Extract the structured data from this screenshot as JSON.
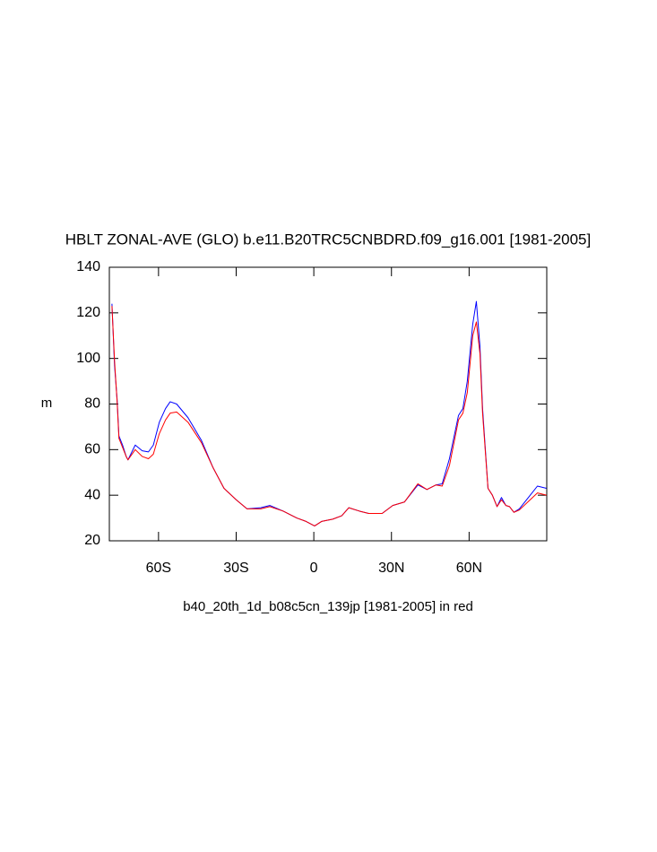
{
  "chart_data": {
    "type": "line",
    "title": "HBLT ZONAL-AVE (GLO) b.e11.B20TRC5CNBDRD.f09_g16.001 [1981-2005]",
    "x_label": "b40_20th_1d_b08c5cn_139jp [1981-2005] in red",
    "y_label": "m",
    "x": [
      -78,
      -77,
      -76,
      -75.3,
      -73.9,
      -72.5,
      -71.8,
      -69,
      -66.3,
      -63.9,
      -62,
      -59.7,
      -57.3,
      -55.5,
      -53,
      -48.6,
      -43.4,
      -38.9,
      -34.7,
      -30,
      -25.8,
      -20.5,
      -17,
      -11.8,
      -6.6,
      -3,
      0.3,
      3,
      7.3,
      10.8,
      13.5,
      17.7,
      21.2,
      26.4,
      30.5,
      35,
      40.2,
      43.7,
      47.2,
      49.6,
      52.4,
      55.9,
      57.6,
      59.3,
      61.4,
      62.8,
      64.2,
      65.2,
      67.3,
      69,
      70.8,
      72.5,
      74.2,
      75.6,
      77.3,
      79.4,
      83.6,
      86.4,
      89.9
    ],
    "series": [
      {
        "name": "b.e11.B20TRC5CNBDRD.f09_g16.001",
        "color": "#0000ff",
        "values": [
          124,
          97,
          82,
          66,
          62,
          57,
          55.5,
          62,
          59.5,
          59,
          62,
          72,
          78,
          81,
          80,
          74,
          64,
          52,
          43,
          38,
          34,
          34.5,
          35.5,
          33,
          30,
          28.5,
          26.5,
          28.5,
          29.5,
          31,
          34.5,
          33,
          32,
          32,
          35.5,
          37,
          44.5,
          42.5,
          44.5,
          45,
          56,
          75,
          78,
          90,
          115,
          125,
          105,
          78,
          43,
          40,
          35,
          39,
          35.5,
          35,
          32.5,
          34,
          40,
          44,
          43
        ]
      },
      {
        "name": "b40_20th_1d_b08c5cn_139jp",
        "color": "#ff0000",
        "values": [
          123,
          99,
          81,
          65,
          61,
          57,
          55.5,
          60,
          57,
          56,
          58,
          67,
          73,
          76,
          76.5,
          72,
          63,
          52,
          43,
          38,
          34,
          34,
          35,
          33,
          30,
          28.5,
          26.5,
          28.5,
          29.5,
          31,
          34.5,
          33,
          32,
          32,
          35.5,
          37,
          45,
          42.5,
          44.5,
          44,
          53,
          73,
          76,
          85,
          110,
          116,
          102,
          76,
          43,
          40,
          35,
          38,
          35.5,
          35,
          32.5,
          33.5,
          38,
          41,
          40
        ]
      }
    ],
    "xlim": [
      -79,
      90
    ],
    "ylim": [
      20,
      140
    ],
    "xticks": [
      {
        "value": -60,
        "label": "60S"
      },
      {
        "value": -30,
        "label": "30S"
      },
      0,
      {
        "value": 30,
        "label": "30N"
      },
      {
        "value": 60,
        "label": "60N"
      }
    ],
    "yticks": [
      20,
      40,
      60,
      80,
      100,
      120,
      140
    ]
  }
}
